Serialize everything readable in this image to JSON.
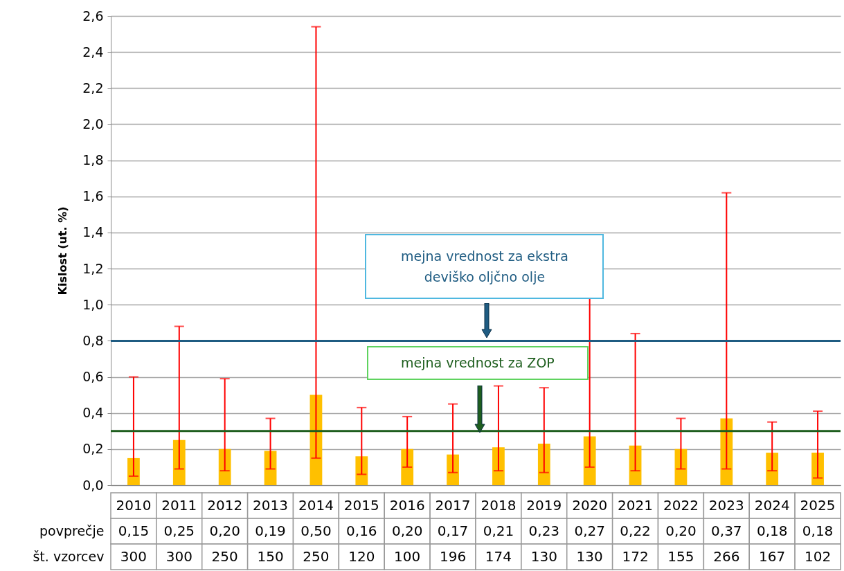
{
  "chart_data": {
    "type": "bar",
    "ylabel": "Kislost (ut. %)",
    "categories": [
      "2010",
      "2011",
      "2012",
      "2013",
      "2014",
      "2015",
      "2016",
      "2017",
      "2018",
      "2019",
      "2020",
      "2021",
      "2022",
      "2023",
      "2024",
      "2025"
    ],
    "series": [
      {
        "color": "#ffc000",
        "values": [
          0.15,
          0.25,
          0.2,
          0.19,
          0.5,
          0.16,
          0.2,
          0.17,
          0.21,
          0.23,
          0.27,
          0.22,
          0.2,
          0.37,
          0.18,
          0.18
        ],
        "value_labels": [
          "0,15",
          "0,25",
          "0,20",
          "0,19",
          "0,50",
          "0,16",
          "0,20",
          "0,17",
          "0,21",
          "0,23",
          "0,27",
          "0,22",
          "0,20",
          "0,37",
          "0,18",
          "0,18"
        ],
        "errors": [
          [
            0.05,
            0.6
          ],
          [
            0.09,
            0.88
          ],
          [
            0.08,
            0.59
          ],
          [
            0.09,
            0.37
          ],
          [
            0.15,
            2.54
          ],
          [
            0.06,
            0.43
          ],
          [
            0.1,
            0.38
          ],
          [
            0.07,
            0.45
          ],
          [
            0.08,
            0.55
          ],
          [
            0.07,
            0.54
          ],
          [
            0.1,
            1.05
          ],
          [
            0.08,
            0.84
          ],
          [
            0.09,
            0.37
          ],
          [
            0.09,
            1.62
          ],
          [
            0.08,
            0.35
          ],
          [
            0.04,
            0.41
          ]
        ]
      }
    ],
    "ylim": [
      0,
      2.6
    ],
    "yticks": [
      {
        "value": 0,
        "label": "0,0"
      },
      {
        "value": 0.2,
        "label": "0,2"
      },
      {
        "value": 0.4,
        "label": "0,4"
      },
      {
        "value": 0.6,
        "label": "0,6"
      },
      {
        "value": 0.8,
        "label": "0,8"
      },
      {
        "value": 1.0,
        "label": "1,0"
      },
      {
        "value": 1.2,
        "label": "1,2"
      },
      {
        "value": 1.4,
        "label": "1,4"
      },
      {
        "value": 1.6,
        "label": "1,6"
      },
      {
        "value": 1.8,
        "label": "1,8"
      },
      {
        "value": 2.0,
        "label": "2,0"
      },
      {
        "value": 2.2,
        "label": "2,2"
      },
      {
        "value": 2.4,
        "label": "2,4"
      },
      {
        "value": 2.6,
        "label": "2,6"
      }
    ],
    "grid": "y",
    "ref_lines": [
      {
        "axis": "y",
        "value": 0.8,
        "label": "mejna vrednost za ekstra deviško oljčno olje",
        "color": "#1f5c82"
      },
      {
        "axis": "y",
        "value": 0.3,
        "label": "mejna vrednost za ZOP",
        "color": "#1e5e1e"
      }
    ],
    "annotations": [
      "povprečje",
      "št. vzorcev",
      "300",
      "300",
      "250",
      "150",
      "250",
      "120",
      "100",
      "196",
      "174",
      "130",
      "130",
      "172",
      "155",
      "266",
      "167",
      "102"
    ]
  }
}
